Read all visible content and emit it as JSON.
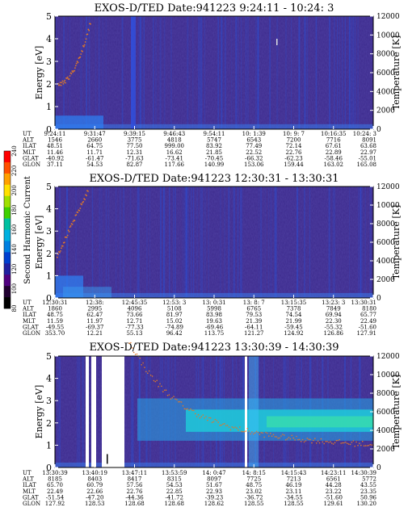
{
  "colors": {
    "background_dark": "#3c2a8c",
    "stripe_blue": "#2850d8",
    "band_cyan": "#20c8d8",
    "band_green": "#40e8a0",
    "trace_orange": "#e07828",
    "gap_white": "#ffffff"
  },
  "colorbar": {
    "label": "Second Harmonic Current",
    "ticks": [
      "240",
      "220",
      "200",
      "180",
      "160",
      "140",
      "120",
      "100",
      "80"
    ],
    "colors": [
      "#ff0000",
      "#ff5000",
      "#ffa000",
      "#ffe000",
      "#a0e000",
      "#40d000",
      "#00c0a0",
      "#00b0e0",
      "#0080e0",
      "#0040d0",
      "#2020a0",
      "#500080",
      "#200030",
      "#000000"
    ]
  },
  "chart_data": [
    {
      "type": "heatmap",
      "title": "EXOS-D/TED   Date:941223   9:24:11 - 10:24: 3",
      "ylabel": "Energy [eV]",
      "ylabel_right": "Temperature [K]",
      "ylim": [
        0,
        5
      ],
      "ylim_right": [
        0,
        12000
      ],
      "yticks": [
        "0",
        "1",
        "2",
        "3",
        "4",
        "5"
      ],
      "yticks_right": [
        "0",
        "2000",
        "4000",
        "6000",
        "8000",
        "10000",
        "12000"
      ],
      "table": {
        "row_labels": [
          "UT",
          "ALT",
          "ILAT",
          "MLT",
          "GLAT",
          "GLON"
        ],
        "columns": [
          [
            "9:24:11",
            "1546",
            "48.51",
            "11.46",
            "-40.92",
            "37.11"
          ],
          [
            "9:31:47",
            "2660",
            "64.75",
            "11.71",
            "-61.47",
            "54.53"
          ],
          [
            "9:39:15",
            "3775",
            "77.50",
            "12.31",
            "-71.63",
            "82.87"
          ],
          [
            "9:46:43",
            "4818",
            "999.00",
            "16.62",
            "-73.41",
            "117.66"
          ],
          [
            "9:54:11",
            "5747",
            "83.92",
            "21.85",
            "-70.45",
            "140.99"
          ],
          [
            "10: 1:39",
            "6543",
            "77.49",
            "22.52",
            "-66.32",
            "153.06"
          ],
          [
            "10: 9: 7",
            "7200",
            "72.14",
            "22.76",
            "-62.23",
            "159.44"
          ],
          [
            "10:16:35",
            "7716",
            "67.61",
            "22.89",
            "-58.46",
            "163.02"
          ],
          [
            "10:24: 3",
            "8091",
            "63.68",
            "22.97",
            "-55.01",
            "165.08"
          ]
        ]
      }
    },
    {
      "type": "heatmap",
      "title": "EXOS-D/TED   Date:941223   12:30:31 - 13:30:31",
      "ylabel": "Energy [eV]",
      "ylabel_right": "Temperature [K]",
      "ylim": [
        0,
        5
      ],
      "ylim_right": [
        0,
        12000
      ],
      "yticks": [
        "0",
        "1",
        "2",
        "3",
        "4",
        "5"
      ],
      "yticks_right": [
        "0",
        "2000",
        "4000",
        "6000",
        "8000",
        "10000",
        "12000"
      ],
      "table": {
        "row_labels": [
          "UT",
          "ALT",
          "ILAT",
          "MLT",
          "GLAT",
          "GLON"
        ],
        "columns": [
          [
            "12:30:31",
            "1860",
            "48.75",
            "11.59",
            "-49.55",
            "353.70"
          ],
          [
            "12:38:",
            "2995",
            "62.47",
            "11.97",
            "-69.37",
            "12.21"
          ],
          [
            "12:45:35",
            "4096",
            "73.66",
            "12.71",
            "-77.33",
            "55.13"
          ],
          [
            "12:53: 3",
            "5108",
            "81.97",
            "15.02",
            "-74.89",
            "96.42"
          ],
          [
            "13: 0:31",
            "5998",
            "83.98",
            "19.63",
            "-69.46",
            "113.75"
          ],
          [
            "13: 8: 7",
            "6765",
            "79.53",
            "21.39",
            "-64.11",
            "121.27"
          ],
          [
            "13:15:35",
            "7378",
            "74.54",
            "21.99",
            "-59.45",
            "124.92"
          ],
          [
            "13:23: 3",
            "7849",
            "69.94",
            "22.30",
            "-55.32",
            "126.86"
          ],
          [
            "13:30:31",
            "8180",
            "65.77",
            "22.49",
            "-51.60",
            "127.91"
          ]
        ]
      }
    },
    {
      "type": "heatmap",
      "title": "EXOS-D/TED   Date:941223   13:30:39 - 14:30:39",
      "ylabel": "Energy [eV]",
      "ylabel_right": "Temperature [K]",
      "ylim": [
        0,
        5
      ],
      "ylim_right": [
        0,
        12000
      ],
      "yticks": [
        "0",
        "1",
        "2",
        "3",
        "4",
        "5"
      ],
      "yticks_right": [
        "0",
        "2000",
        "4000",
        "6000",
        "8000",
        "10000",
        "12000"
      ],
      "table": {
        "row_labels": [
          "UT",
          "ALT",
          "ILAT",
          "MLT",
          "GLAT",
          "GLON"
        ],
        "columns": [
          [
            "13:30:39",
            "8185",
            "65.70",
            "22.49",
            "-51.54",
            "127.92"
          ],
          [
            "13:40:19",
            "8403",
            "60.79",
            "22.66",
            "-47.20",
            "128.53"
          ],
          [
            "13:47:11",
            "8417",
            "57.56",
            "22.76",
            "-44.36",
            "128.68"
          ],
          [
            "13:53:59",
            "8315",
            "54.53",
            "22.85",
            "-41.72",
            "128.68"
          ],
          [
            "14: 0:47",
            "8097",
            "51.67",
            "22.93",
            "-39.23",
            "128.62"
          ],
          [
            "14: 8:15",
            "7725",
            "48.75",
            "23.02",
            "-36.72",
            "128.55"
          ],
          [
            "14:15:43",
            "7213",
            "46.19",
            "23.11",
            "-34.55",
            "128.55"
          ],
          [
            "14:23:11",
            "6561",
            "44.28",
            "23.22",
            "-51.60",
            "129.61"
          ],
          [
            "14:30:39",
            "5772",
            "43.55",
            "23.35",
            "50.96",
            "130.20"
          ]
        ]
      }
    }
  ]
}
